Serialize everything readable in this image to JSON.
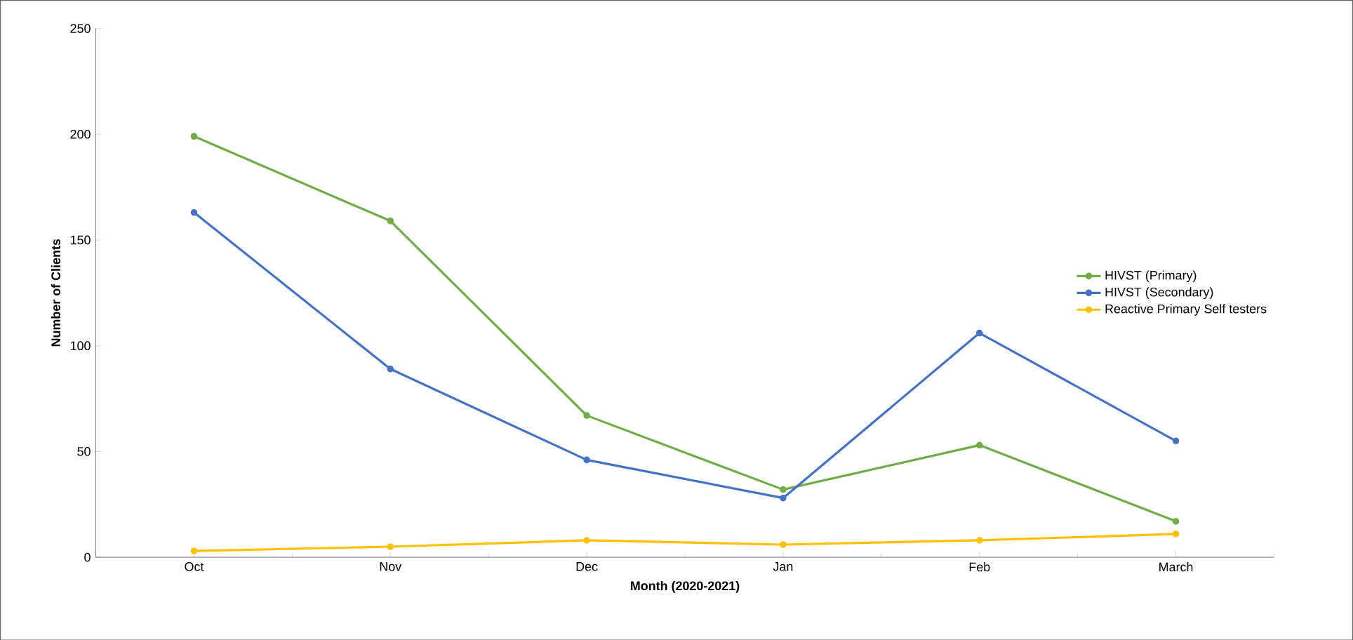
{
  "chart_data": {
    "type": "line",
    "xlabel": "Month (2020-2021)",
    "ylabel": "Number of Clients",
    "categories": [
      "Oct",
      "Nov",
      "Dec",
      "Jan",
      "Feb",
      "March"
    ],
    "series": [
      {
        "name": "HIVST (Primary)",
        "color": "#70ad47",
        "values": [
          199,
          159,
          67,
          32,
          53,
          17
        ]
      },
      {
        "name": "HIVST (Secondary)",
        "color": "#4472c4",
        "values": [
          163,
          89,
          46,
          28,
          106,
          55
        ]
      },
      {
        "name": "Reactive Primary Self testers",
        "color": "#ffc000",
        "values": [
          3,
          5,
          8,
          6,
          8,
          11
        ]
      }
    ],
    "ylim": [
      0,
      250
    ],
    "yticks": [
      0,
      50,
      100,
      150,
      200,
      250
    ],
    "legend": "right",
    "marker": "circle",
    "line_style": "solid",
    "grid": false
  }
}
